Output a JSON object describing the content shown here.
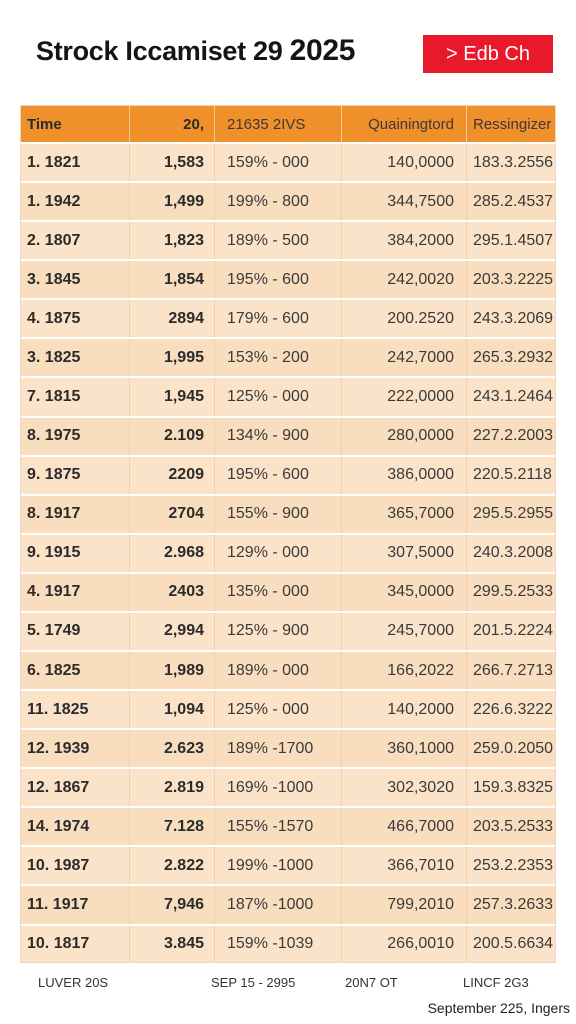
{
  "header": {
    "title_main": "Strock Iccamiset 29",
    "title_year": "2025",
    "edit_button": "> Edb Ch"
  },
  "table": {
    "columns": [
      "Time",
      "20,",
      "21635  2IVS",
      "Quainingtord",
      "Ressingizer Sat"
    ],
    "rows": [
      [
        "1.  1821",
        "1,583",
        "159% - 000",
        "140,0000",
        "183.3.2556"
      ],
      [
        "1.  1942",
        "1,499",
        "199% - 800",
        "344,7500",
        "285.2.4537"
      ],
      [
        "2.  1807",
        "1,823",
        "189% - 500",
        "384,2000",
        "295.1.4507"
      ],
      [
        "3.  1845",
        "1,854",
        "195% - 600",
        "242,0020",
        "203.3.2225"
      ],
      [
        "4.  1875",
        "2894",
        "179% - 600",
        "200.2520",
        "243.3.2069"
      ],
      [
        "3.  1825",
        "1,995",
        "153% - 200",
        "242,7000",
        "265.3.2932"
      ],
      [
        "7.  1815",
        "1,945",
        "125% - 000",
        "222,0000",
        "243.1.2464"
      ],
      [
        "8.  1975",
        "2.109",
        "134% - 900",
        "280,0000",
        "227.2.2003"
      ],
      [
        "9.  1875",
        "2209",
        "195% - 600",
        "386,0000",
        "220.5.2118"
      ],
      [
        "8.  1917",
        "2704",
        "155% - 900",
        "365,7000",
        "295.5.2955"
      ],
      [
        "9.  1915",
        "2.968",
        "129% - 000",
        "307,5000",
        "240.3.2008"
      ],
      [
        "4.  1917",
        "2403",
        "135% - 000",
        "345,0000",
        "299.5.2533"
      ],
      [
        "5.  1749",
        "2,994",
        "125% - 900",
        "245,7000",
        "201.5.2224"
      ],
      [
        "6.  1825",
        "1,989",
        "189% - 000",
        "166,2022",
        "266.7.2713"
      ],
      [
        "11.  1825",
        "1,094",
        "125% - 000",
        "140,2000",
        "226.6.3222"
      ],
      [
        "12. 1939",
        "2.623",
        "189% -1700",
        "360,1000",
        "259.0.2050"
      ],
      [
        "12. 1867",
        "2.819",
        "169% -1000",
        "302,3020",
        "159.3.8325"
      ],
      [
        "14. 1974",
        "7.128",
        "155% -1570",
        "466,7000",
        "203.5.2533"
      ],
      [
        "10. 1987",
        "2.822",
        "199% -1000",
        "366,7010",
        "253.2.2353"
      ],
      [
        "11.  1917",
        "7,946",
        "187% -1000",
        "799,2010",
        "257.3.2633"
      ],
      [
        "10. 1817",
        "3.845",
        "159% -1039",
        "266,0010",
        "200.5.6634"
      ]
    ]
  },
  "footer": {
    "items": [
      "LUVER 20S",
      "SEP 15 - 2995",
      "20N7 OT",
      "LINCF 2G3"
    ],
    "date_note": "September 225, Ingers"
  },
  "colors": {
    "header_orange": "#f0902a",
    "row_peach": "#fae3c9",
    "button_red": "#e8192b"
  }
}
